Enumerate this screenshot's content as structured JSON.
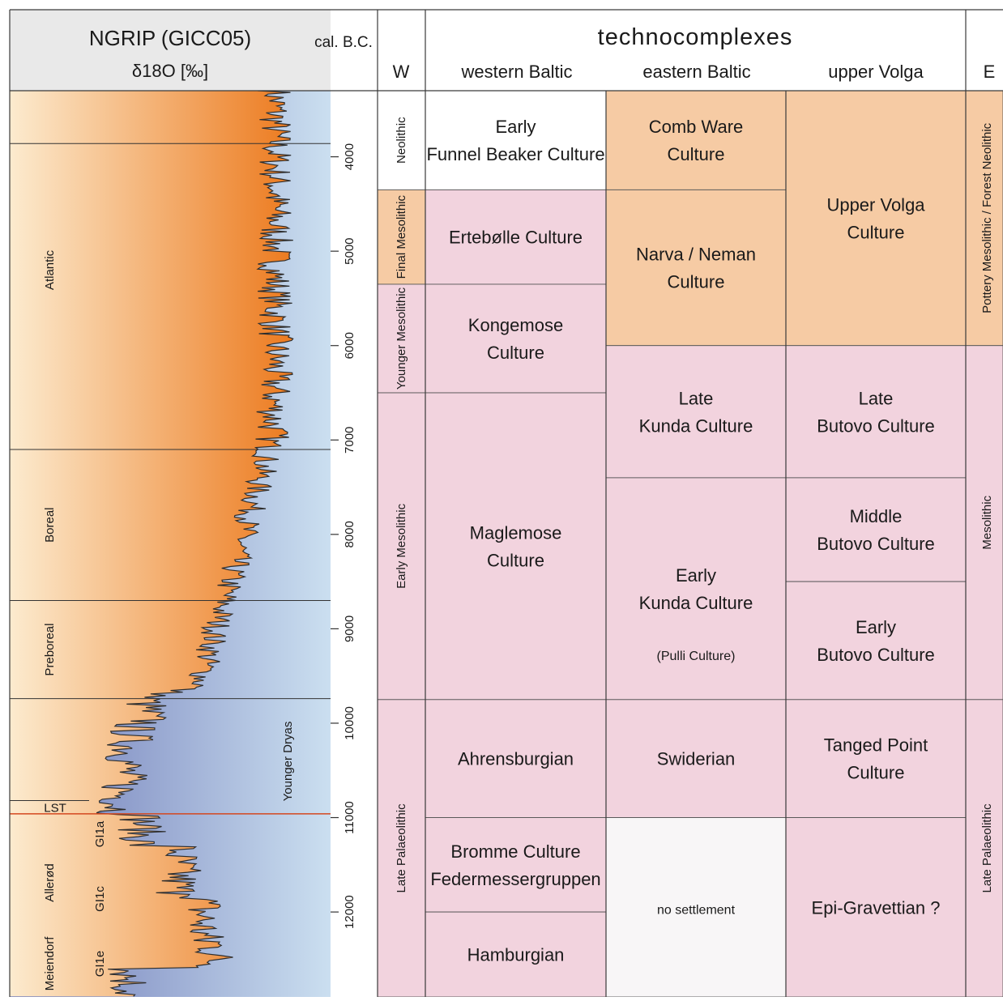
{
  "header": {
    "ngrip_title": "NGRIP (GICC05)",
    "ngrip_subtitle": "δ18O [‰]",
    "age_label": "cal. B.C.",
    "technocomplexes": "technocomplexes",
    "col_w": "W",
    "col_western": "western Baltic",
    "col_eastern": "eastern Baltic",
    "col_volga": "upper Volga",
    "col_e": "E"
  },
  "age_axis": {
    "min": 3300,
    "max": 12900,
    "ticks": [
      "4000",
      "5000",
      "6000",
      "7000",
      "8000",
      "9000",
      "10000",
      "11000",
      "12000"
    ]
  },
  "climate_periods": [
    {
      "label": "Atlantic",
      "from": 3300,
      "to": 7100
    },
    {
      "label": "Boreal",
      "from": 7100,
      "to": 8700
    },
    {
      "label": "Preboreal",
      "from": 8700,
      "to": 9740
    },
    {
      "label": "Younger Dryas",
      "from": 9740,
      "to": 10900
    },
    {
      "label": "LST",
      "from": 10820,
      "to": 10960
    },
    {
      "label": "Allerød",
      "from": 10960,
      "to": 12000
    },
    {
      "label": "Meiendorf",
      "from": 12000,
      "to": 12900
    }
  ],
  "gi_labels": [
    "GI1a",
    "GI1c",
    "GI1e"
  ],
  "w_periods": [
    {
      "label": "Neolithic",
      "from": 3300,
      "to": 4350,
      "color": "#ffffff"
    },
    {
      "label": "Final Mesolithic",
      "from": 4350,
      "to": 5350,
      "color": "#f6cba4"
    },
    {
      "label": "Younger Mesolithic",
      "from": 5350,
      "to": 6500,
      "color": "#f2d3de"
    },
    {
      "label": "Early Mesolithic",
      "from": 6500,
      "to": 9750,
      "color": "#f2d3de"
    },
    {
      "label": "Late Palaeolithic",
      "from": 9750,
      "to": 12900,
      "color": "#f2d3de"
    }
  ],
  "western_baltic": [
    {
      "lines": [
        "Early",
        "Funnel Beaker Culture"
      ],
      "from": 3300,
      "to": 4350,
      "color": "#ffffff"
    },
    {
      "lines": [
        "Ertebølle Culture"
      ],
      "from": 4350,
      "to": 5350,
      "color": "#f2d3de"
    },
    {
      "lines": [
        "Kongemose",
        "Culture"
      ],
      "from": 5350,
      "to": 6500,
      "color": "#f2d3de"
    },
    {
      "lines": [
        "Maglemose",
        "Culture"
      ],
      "from": 6500,
      "to": 9750,
      "color": "#f2d3de"
    },
    {
      "lines": [
        "Ahrensburgian"
      ],
      "from": 9750,
      "to": 11000,
      "color": "#f2d3de"
    },
    {
      "lines": [
        "Bromme Culture",
        "Federmessergruppen"
      ],
      "from": 11000,
      "to": 12000,
      "color": "#f2d3de"
    },
    {
      "lines": [
        "Hamburgian"
      ],
      "from": 12000,
      "to": 12900,
      "color": "#f2d3de"
    }
  ],
  "eastern_baltic": [
    {
      "lines": [
        "Comb Ware",
        "Culture"
      ],
      "from": 3300,
      "to": 4350,
      "color": "#f6cba4"
    },
    {
      "lines": [
        "Narva / Neman",
        "Culture"
      ],
      "from": 4350,
      "to": 6000,
      "color": "#f6cba4"
    },
    {
      "lines": [
        "Late",
        "Kunda Culture"
      ],
      "from": 6000,
      "to": 7400,
      "color": "#f2d3de"
    },
    {
      "lines": [
        "Early",
        "Kunda Culture"
      ],
      "from": 7400,
      "to": 9750,
      "color": "#f2d3de"
    },
    {
      "lines": [
        "Swiderian"
      ],
      "from": 9750,
      "to": 11000,
      "color": "#f2d3de"
    },
    {
      "lines": [
        "no settlement"
      ],
      "from": 11000,
      "to": 12900,
      "color": "#f8f6f7"
    }
  ],
  "pulli_note": "(Pulli Culture)",
  "upper_volga": [
    {
      "lines": [
        "Upper Volga",
        "Culture"
      ],
      "from": 3300,
      "to": 6000,
      "color": "#f6cba4"
    },
    {
      "lines": [
        "Late",
        "Butovo Culture"
      ],
      "from": 6000,
      "to": 7400,
      "color": "#f2d3de"
    },
    {
      "lines": [
        "Middle",
        "Butovo Culture"
      ],
      "from": 7400,
      "to": 8500,
      "color": "#f2d3de"
    },
    {
      "lines": [
        "Early",
        "Butovo Culture"
      ],
      "from": 8500,
      "to": 9750,
      "color": "#f2d3de"
    },
    {
      "lines": [
        "Tanged Point",
        "Culture"
      ],
      "from": 9750,
      "to": 11000,
      "color": "#f2d3de"
    },
    {
      "lines": [
        "Epi-Gravettian ?"
      ],
      "from": 11000,
      "to": 12900,
      "color": "#f2d3de"
    }
  ],
  "e_periods": [
    {
      "label": "Pottery Mesolithic / Forest Neolithic",
      "from": 3300,
      "to": 6000,
      "color": "#f6cba4"
    },
    {
      "label": "Mesolithic",
      "from": 6000,
      "to": 9750,
      "color": "#f2d3de"
    },
    {
      "label": "Late Palaeolithic",
      "from": 9750,
      "to": 12900,
      "color": "#f2d3de"
    }
  ],
  "colors": {
    "warm_dark": "#ec7a1e",
    "warm_light": "#fcebcf",
    "cold_dark": "#6e7ab8",
    "cold_light": "#cbdff0",
    "lst_line": "#d4471f"
  }
}
